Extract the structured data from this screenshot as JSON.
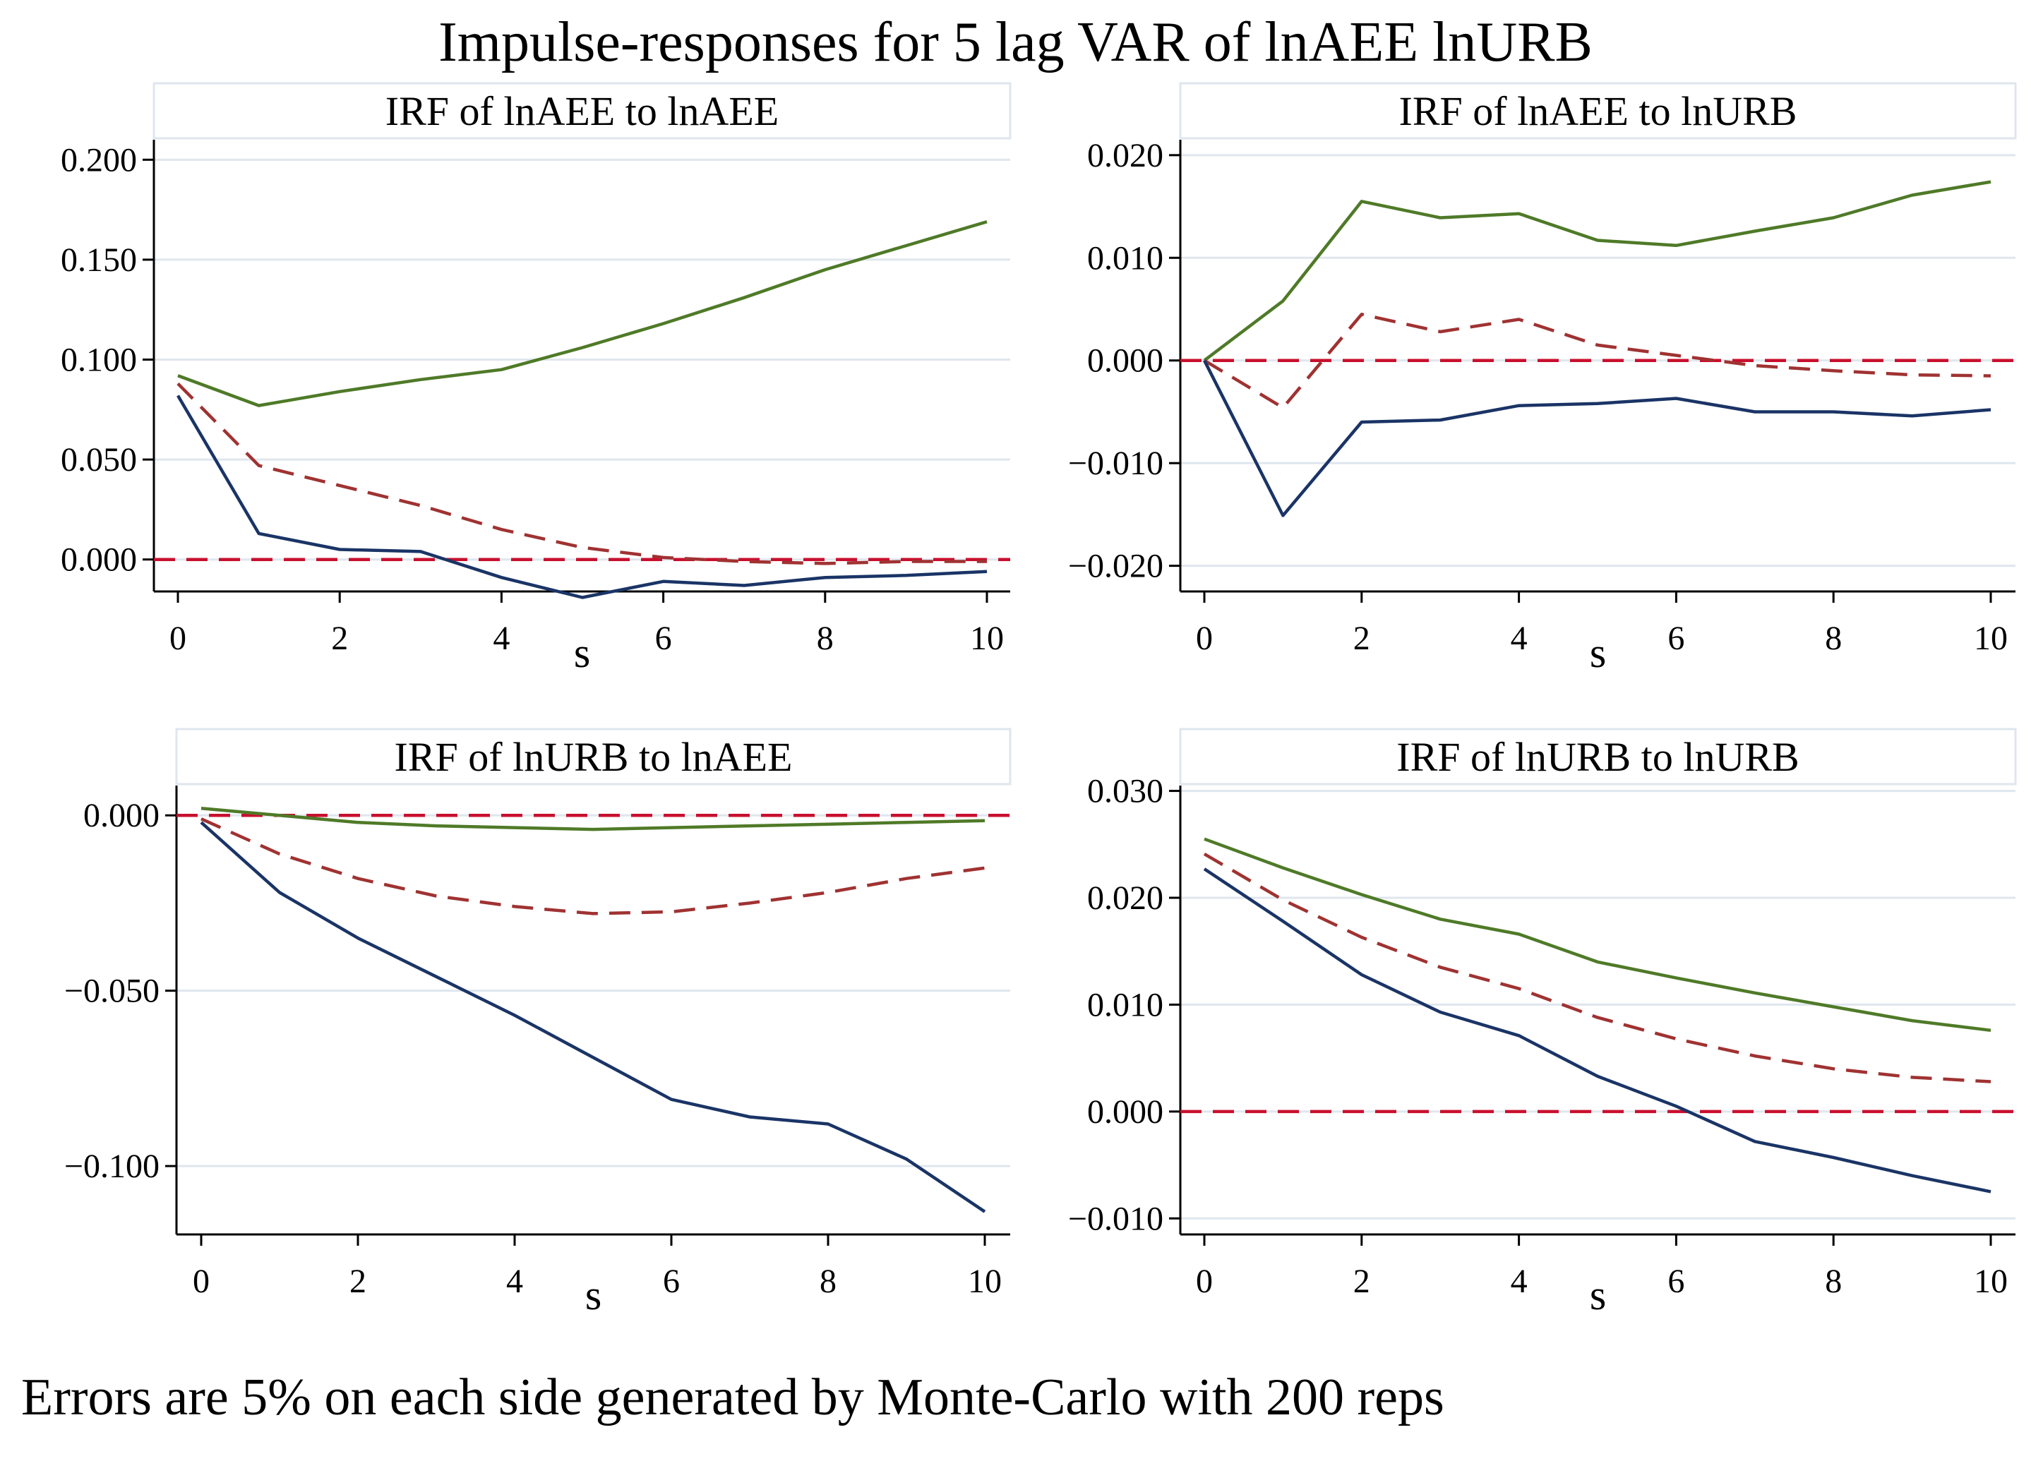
{
  "title": "Impulse-responses for 5 lag VAR of lnAEE lnURB",
  "footnote": "Errors are 5% on each side generated by Monte-Carlo with 200 reps",
  "colors": {
    "upper_band": "#4f7a28",
    "lower_band": "#1a3466",
    "irf": "#a03232",
    "zero_line": "#c8102e",
    "grid": "#dfe6ee",
    "axis": "#000000"
  },
  "chart_data": [
    {
      "type": "line",
      "title": "IRF of lnAEE to lnAEE",
      "xlabel": "s",
      "ylabel": "",
      "xlim": [
        0,
        10
      ],
      "ylim": [
        -0.016,
        0.21
      ],
      "xticks": [
        0,
        2,
        4,
        6,
        8,
        10
      ],
      "yticks": [
        0.0,
        0.05,
        0.1,
        0.15,
        0.2
      ],
      "ytick_labels": [
        "0.000",
        "0.050",
        "0.100",
        "0.150",
        "0.200"
      ],
      "x": [
        0,
        1,
        2,
        3,
        4,
        5,
        6,
        7,
        8,
        9,
        10
      ],
      "series": [
        {
          "name": "upper",
          "values": [
            0.092,
            0.077,
            0.084,
            0.09,
            0.095,
            0.106,
            0.118,
            0.131,
            0.145,
            0.157,
            0.169
          ]
        },
        {
          "name": "irf",
          "values": [
            0.088,
            0.047,
            0.037,
            0.027,
            0.015,
            0.006,
            0.001,
            -0.001,
            -0.002,
            -0.001,
            -0.001
          ]
        },
        {
          "name": "lower",
          "values": [
            0.082,
            0.013,
            0.005,
            0.004,
            -0.009,
            -0.019,
            -0.011,
            -0.013,
            -0.009,
            -0.008,
            -0.006
          ]
        }
      ]
    },
    {
      "type": "line",
      "title": "IRF of lnAEE to lnURB",
      "xlabel": "s",
      "ylabel": "",
      "xlim": [
        0,
        10
      ],
      "ylim": [
        -0.0225,
        0.0215
      ],
      "xticks": [
        0,
        2,
        4,
        6,
        8,
        10
      ],
      "yticks": [
        -0.02,
        -0.01,
        0.0,
        0.01,
        0.02
      ],
      "ytick_labels": [
        "−0.020",
        "−0.010",
        "0.000",
        "0.010",
        "0.020"
      ],
      "x": [
        0,
        1,
        2,
        3,
        4,
        5,
        6,
        7,
        8,
        9,
        10
      ],
      "series": [
        {
          "name": "upper",
          "values": [
            0.0,
            0.0058,
            0.0155,
            0.0139,
            0.0143,
            0.0117,
            0.0112,
            0.0126,
            0.0139,
            0.0161,
            0.0174
          ]
        },
        {
          "name": "irf",
          "values": [
            0.0,
            -0.0046,
            0.0045,
            0.0028,
            0.004,
            0.0015,
            0.0005,
            -0.0005,
            -0.001,
            -0.0014,
            -0.0015
          ]
        },
        {
          "name": "lower",
          "values": [
            0.0,
            -0.0151,
            -0.006,
            -0.0058,
            -0.0044,
            -0.0042,
            -0.0037,
            -0.005,
            -0.005,
            -0.0054,
            -0.0048
          ]
        }
      ]
    },
    {
      "type": "line",
      "title": "IRF of lnURB to lnAEE",
      "xlabel": "s",
      "ylabel": "",
      "xlim": [
        0,
        10
      ],
      "ylim": [
        -0.1195,
        0.0085
      ],
      "xticks": [
        0,
        2,
        4,
        6,
        8,
        10
      ],
      "yticks": [
        -0.1,
        -0.05,
        0.0
      ],
      "ytick_labels": [
        "−0.100",
        "−0.050",
        "0.000"
      ],
      "x": [
        0,
        1,
        2,
        3,
        4,
        5,
        6,
        7,
        8,
        9,
        10
      ],
      "series": [
        {
          "name": "upper",
          "values": [
            0.002,
            0.0,
            -0.002,
            -0.003,
            -0.0035,
            -0.004,
            -0.0035,
            -0.003,
            -0.0025,
            -0.002,
            -0.0015
          ]
        },
        {
          "name": "irf",
          "values": [
            -0.001,
            -0.011,
            -0.018,
            -0.023,
            -0.026,
            -0.028,
            -0.0275,
            -0.025,
            -0.022,
            -0.018,
            -0.015
          ]
        },
        {
          "name": "lower",
          "values": [
            -0.002,
            -0.022,
            -0.035,
            -0.046,
            -0.057,
            -0.069,
            -0.081,
            -0.086,
            -0.088,
            -0.098,
            -0.113
          ]
        }
      ]
    },
    {
      "type": "line",
      "title": "IRF of lnURB to lnURB",
      "xlabel": "s",
      "ylabel": "",
      "xlim": [
        0,
        10
      ],
      "ylim": [
        -0.0115,
        0.0305
      ],
      "xticks": [
        0,
        2,
        4,
        6,
        8,
        10
      ],
      "yticks": [
        -0.01,
        0.0,
        0.01,
        0.02,
        0.03
      ],
      "ytick_labels": [
        "−0.010",
        "0.000",
        "0.010",
        "0.020",
        "0.030"
      ],
      "x": [
        0,
        1,
        2,
        3,
        4,
        5,
        6,
        7,
        8,
        9,
        10
      ],
      "series": [
        {
          "name": "upper",
          "values": [
            0.0255,
            0.0228,
            0.0203,
            0.018,
            0.0166,
            0.014,
            0.0125,
            0.0111,
            0.0098,
            0.0085,
            0.0076
          ]
        },
        {
          "name": "irf",
          "values": [
            0.0241,
            0.0198,
            0.0163,
            0.0135,
            0.0115,
            0.0088,
            0.0068,
            0.0052,
            0.004,
            0.0032,
            0.0028
          ]
        },
        {
          "name": "lower",
          "values": [
            0.0227,
            0.0178,
            0.0128,
            0.0093,
            0.0071,
            0.0033,
            0.0005,
            -0.0028,
            -0.0043,
            -0.006,
            -0.0075
          ]
        }
      ]
    }
  ]
}
